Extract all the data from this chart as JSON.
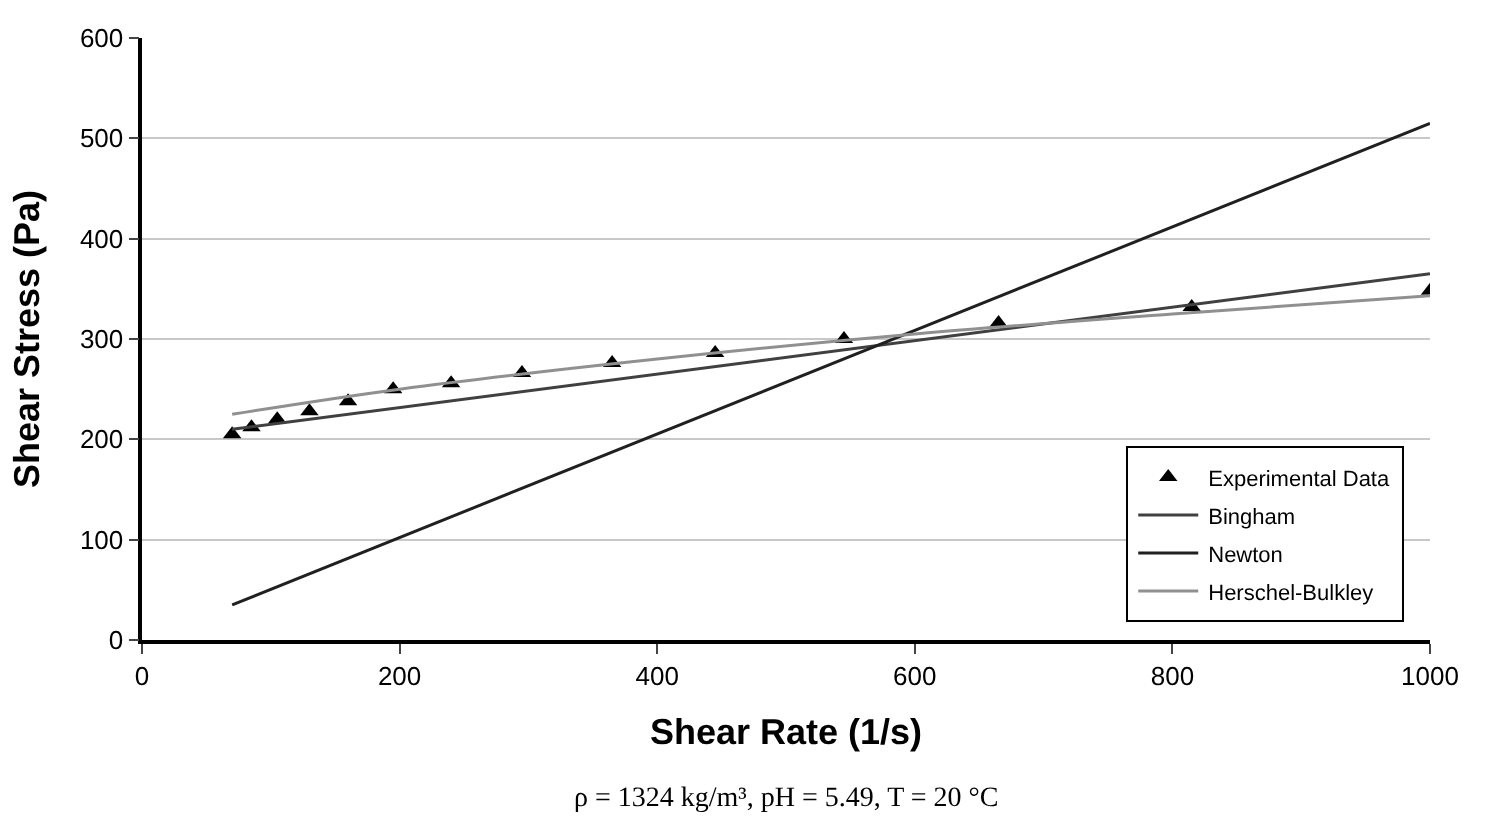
{
  "chart_data": {
    "type": "scatter",
    "xlabel": "Shear Rate (1/s)",
    "ylabel": "Shear Stress (Pa)",
    "xlim": [
      0,
      1000
    ],
    "xticks": [
      0,
      200,
      400,
      600,
      800,
      1000
    ],
    "ylim": [
      0,
      600
    ],
    "yticks": [
      0,
      100,
      200,
      300,
      400,
      500,
      600
    ],
    "grid": "y",
    "legend": "bottom right",
    "series": [
      {
        "name": "Experimental Data",
        "type": "scatter",
        "marker": "triangle",
        "color": "#000000",
        "x": [
          70,
          85,
          105,
          130,
          160,
          195,
          240,
          295,
          365,
          445,
          545,
          665,
          815,
          1000
        ],
        "values": [
          205,
          212,
          220,
          228,
          238,
          250,
          256,
          266,
          276,
          286,
          300,
          316,
          332,
          348
        ]
      },
      {
        "name": "Bingham",
        "type": "line",
        "color": "#404040",
        "x": [
          70,
          1000
        ],
        "values": [
          210,
          365
        ]
      },
      {
        "name": "Newton",
        "type": "line",
        "color": "#202020",
        "x": [
          70,
          1000
        ],
        "values": [
          35,
          515
        ]
      },
      {
        "name": "Herschel-Bulkley",
        "type": "line",
        "color": "#909090",
        "x": [
          70,
          200,
          400,
          600,
          800,
          1000
        ],
        "values": [
          225,
          250,
          280,
          305,
          325,
          343
        ]
      }
    ],
    "annotations": [
      "ρ = 1324 kg/m³, pH = 5.49, T = 20 °C"
    ]
  }
}
